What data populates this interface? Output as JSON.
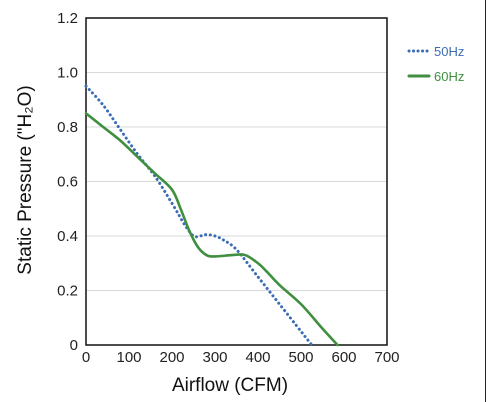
{
  "chart_data": {
    "type": "line",
    "xlabel": "Airflow (CFM)",
    "ylabel": "Static Pressure (\"H₂O)",
    "xlim": [
      0,
      700
    ],
    "ylim": [
      0,
      1.2
    ],
    "xticks": [
      "0",
      "100",
      "200",
      "300",
      "400",
      "500",
      "600",
      "700"
    ],
    "yticks": [
      "0",
      "0.2",
      "0.4",
      "0.6",
      "0.8",
      "1.0",
      "1.2"
    ],
    "grid": "horizontal",
    "legend_position": "right",
    "series": [
      {
        "name": "50Hz",
        "style": "dotted",
        "color": "#3b6db5",
        "x": [
          0,
          40,
          80,
          120,
          160,
          200,
          230,
          250,
          265,
          280,
          300,
          320,
          350,
          400,
          450,
          500,
          525
        ],
        "y": [
          0.95,
          0.88,
          0.79,
          0.7,
          0.62,
          0.52,
          0.44,
          0.4,
          0.4,
          0.405,
          0.4,
          0.385,
          0.35,
          0.25,
          0.15,
          0.05,
          0.0
        ]
      },
      {
        "name": "60Hz",
        "style": "solid",
        "color": "#3f8f3f",
        "x": [
          0,
          40,
          80,
          120,
          160,
          200,
          220,
          240,
          260,
          280,
          300,
          340,
          370,
          400,
          420,
          450,
          500,
          550,
          585
        ],
        "y": [
          0.85,
          0.8,
          0.75,
          0.69,
          0.63,
          0.57,
          0.5,
          0.42,
          0.36,
          0.33,
          0.325,
          0.33,
          0.33,
          0.3,
          0.27,
          0.22,
          0.15,
          0.06,
          0.0
        ]
      }
    ]
  }
}
